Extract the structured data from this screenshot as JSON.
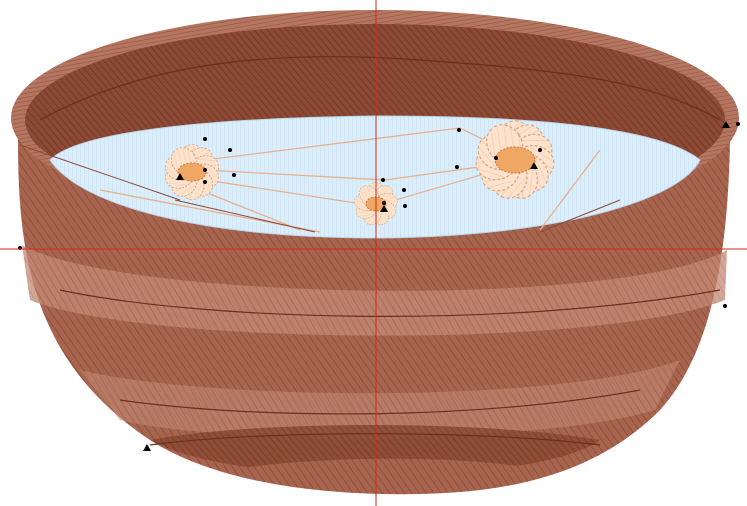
{
  "canvas": {
    "background": "#ffffff"
  },
  "colors": {
    "bowl_outer": "#a7654f",
    "bowl_outer_dark": "#7a3d2a",
    "bowl_rim": "#b57661",
    "bowl_inner": "#8c4a35",
    "bowl_band": "#c48a76",
    "water": "#d8ecfb",
    "water_stitch": "#b7d6ee",
    "petal": "#fde0c8",
    "petal_edge": "#e7b796",
    "flower_center": "#f0a764",
    "flower_center_edge": "#c9783b",
    "guide_line": "#d02a1a",
    "path_line": "#e8b48f",
    "node_marker": "#000000"
  },
  "objects": {
    "bowl": {
      "name": "bowl"
    },
    "water": {
      "name": "water-surface"
    },
    "flowers": [
      {
        "name": "flower-left",
        "petals": 10
      },
      {
        "name": "flower-middle",
        "petals": 9
      },
      {
        "name": "flower-right",
        "petals": 11
      }
    ]
  },
  "guides": {
    "vertical": "guide-vertical",
    "horizontal": "guide-horizontal"
  },
  "icons": {
    "start_marker": "triangle-marker-icon",
    "node_marker": "node-dot-icon"
  }
}
